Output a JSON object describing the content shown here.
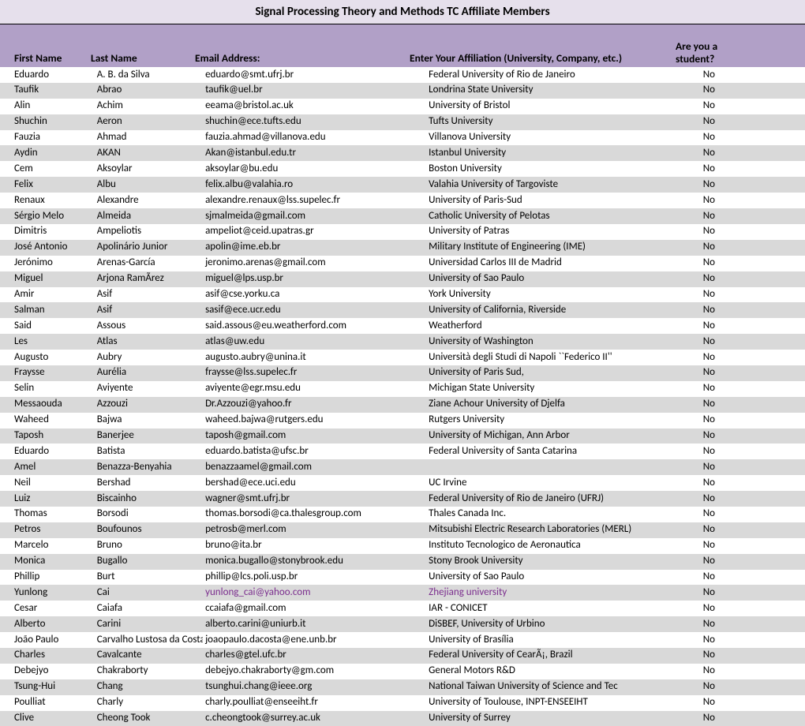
{
  "title": "Signal Processing Theory and Methods TC Affiliate Members",
  "colors": {
    "title_bg": "#e6e0ec",
    "header_bg": "#b1a0c7",
    "row_alt": "#d9d9d9",
    "highlight_text": "#7b2e8e"
  },
  "columns": [
    "First Name",
    "Last Name",
    "Email Address:",
    "Enter Your Affiliation (University, Company, etc.)",
    "Are you a student?"
  ],
  "rows": [
    {
      "first": "Eduardo",
      "last": "A. B. da Silva",
      "email": "eduardo@smt.ufrj.br",
      "affil": "Federal University of Rio de Janeiro",
      "student": "No"
    },
    {
      "first": "Taufik",
      "last": "Abrao",
      "email": "taufik@uel.br",
      "affil": "Londrina State University",
      "student": "No"
    },
    {
      "first": "Alin",
      "last": "Achim",
      "email": "eeama@bristol.ac.uk",
      "affil": "University of Bristol",
      "student": "No"
    },
    {
      "first": "Shuchin",
      "last": "Aeron",
      "email": "shuchin@ece.tufts.edu",
      "affil": "Tufts University",
      "student": "No"
    },
    {
      "first": "Fauzia",
      "last": "Ahmad",
      "email": "fauzia.ahmad@villanova.edu",
      "affil": "Villanova University",
      "student": "No"
    },
    {
      "first": "Aydin",
      "last": "AKAN",
      "email": "Akan@istanbul.edu.tr",
      "affil": "Istanbul University",
      "student": "No"
    },
    {
      "first": "Cem",
      "last": "Aksoylar",
      "email": "aksoylar@bu.edu",
      "affil": "Boston University",
      "student": "No"
    },
    {
      "first": "Felix",
      "last": "Albu",
      "email": "felix.albu@valahia.ro",
      "affil": "Valahia University of Targoviste",
      "student": "No"
    },
    {
      "first": "Renaux",
      "last": "Alexandre",
      "email": "alexandre.renaux@lss.supelec.fr",
      "affil": "University of Paris-Sud",
      "student": "No"
    },
    {
      "first": "Sérgio Melo",
      "last": "Almeida",
      "email": "sjmalmeida@gmail.com",
      "affil": "Catholic University of Pelotas",
      "student": "No"
    },
    {
      "first": "Dimitris",
      "last": "Ampeliotis",
      "email": "ampeliot@ceid.upatras.gr",
      "affil": "University of Patras",
      "student": "No"
    },
    {
      "first": "José Antonio",
      "last": "Apolinário Junior",
      "email": "apolin@ime.eb.br",
      "affil": "Military Institute of Engineering (IME)",
      "student": "No"
    },
    {
      "first": "Jerónimo",
      "last": "Arenas-García",
      "email": "jeronimo.arenas@gmail.com",
      "affil": "Universidad Carlos III de Madrid",
      "student": "No"
    },
    {
      "first": "Miguel",
      "last": "Arjona RamÃ­rez",
      "email": "miguel@lps.usp.br",
      "affil": "University of Sao Paulo",
      "student": "No"
    },
    {
      "first": "Amir",
      "last": "Asif",
      "email": "asif@cse.yorku.ca",
      "affil": "York University",
      "student": "No"
    },
    {
      "first": "Salman",
      "last": "Asif",
      "email": "sasif@ece.ucr.edu",
      "affil": "University of California, Riverside",
      "student": "No"
    },
    {
      "first": "Said",
      "last": "Assous",
      "email": "said.assous@eu.weatherford.com",
      "affil": "Weatherford",
      "student": "No"
    },
    {
      "first": "Les",
      "last": "Atlas",
      "email": "atlas@uw.edu",
      "affil": "University of Washington",
      "student": "No"
    },
    {
      "first": "Augusto",
      "last": "Aubry",
      "email": "augusto.aubry@unina.it",
      "affil": " Università degli Studi di Napoli ``Federico II''",
      "student": "No"
    },
    {
      "first": "Fraysse",
      "last": "Aurélia",
      "email": "fraysse@lss.supelec.fr",
      "affil": "University of Paris Sud,",
      "student": "No"
    },
    {
      "first": "Selin",
      "last": "Aviyente",
      "email": "aviyente@egr.msu.edu",
      "affil": "Michigan State University",
      "student": "No"
    },
    {
      "first": "Messaouda",
      "last": "Azzouzi",
      "email": "Dr.Azzouzi@yahoo.fr",
      "affil": "Ziane Achour University of Djelfa",
      "student": "No"
    },
    {
      "first": "Waheed",
      "last": "Bajwa",
      "email": "waheed.bajwa@rutgers.edu",
      "affil": "Rutgers University",
      "student": "No"
    },
    {
      "first": "Taposh",
      "last": "Banerjee",
      "email": "taposh@gmail.com",
      "affil": "University of Michigan, Ann Arbor",
      "student": "No"
    },
    {
      "first": "Eduardo",
      "last": "Batista",
      "email": "eduardo.batista@ufsc.br",
      "affil": "Federal University of Santa Catarina",
      "student": "No"
    },
    {
      "first": "Amel",
      "last": "Benazza-Benyahia",
      "email": "benazzaamel@gmail.com",
      "affil": "",
      "student": "No"
    },
    {
      "first": "Neil",
      "last": "Bershad",
      "email": "bershad@ece.uci.edu",
      "affil": "UC Irvine",
      "student": "No"
    },
    {
      "first": "Luiz",
      "last": "Biscainho",
      "email": "wagner@smt.ufrj.br",
      "affil": "Federal University of Rio de Janeiro (UFRJ)",
      "student": "No"
    },
    {
      "first": "Thomas",
      "last": "Borsodi",
      "email": "thomas.borsodi@ca.thalesgroup.com",
      "affil": "Thales Canada Inc.",
      "student": "No"
    },
    {
      "first": "Petros",
      "last": "Boufounos",
      "email": "petrosb@merl.com",
      "affil": "Mitsubishi Electric Research Laboratories (MERL)",
      "student": "No"
    },
    {
      "first": "Marcelo",
      "last": "Bruno",
      "email": "bruno@ita.br",
      "affil": "Instituto Tecnologico de Aeronautica",
      "student": "No"
    },
    {
      "first": "Monica",
      "last": "Bugallo",
      "email": "monica.bugallo@stonybrook.edu",
      "affil": "Stony Brook University",
      "student": "No"
    },
    {
      "first": "Phillip",
      "last": "Burt",
      "email": "phillip@lcs.poli.usp.br",
      "affil": "University of Sao Paulo",
      "student": "No"
    },
    {
      "first": "Yunlong",
      "last": "Cai",
      "email": "yunlong_cai@yahoo.com",
      "affil": "Zhejiang university",
      "student": "No",
      "highlight": true
    },
    {
      "first": "Cesar",
      "last": "Caiafa",
      "email": "ccaiafa@gmail.com",
      "affil": "IAR - CONICET",
      "student": "No"
    },
    {
      "first": "Alberto",
      "last": "Carini",
      "email": "alberto.carini@uniurb.it",
      "affil": "DiSBEF, University of Urbino",
      "student": "No"
    },
    {
      "first": "João Paulo",
      "last": "Carvalho Lustosa da Costa",
      "email": "joaopaulo.dacosta@ene.unb.br",
      "affil": "University of Brasília",
      "student": "No"
    },
    {
      "first": "Charles",
      "last": "Cavalcante",
      "email": "charles@gtel.ufc.br",
      "affil": "Federal University of CearÃ¡, Brazil",
      "student": "No"
    },
    {
      "first": "Debejyo",
      "last": "Chakraborty",
      "email": "debejyo.chakraborty@gm.com",
      "affil": "General Motors R&D",
      "student": "No"
    },
    {
      "first": "Tsung-Hui",
      "last": "Chang",
      "email": "tsunghui.chang@ieee.org",
      "affil": "National Taiwan University of Science and Tec",
      "student": "No"
    },
    {
      "first": "Poulliat",
      "last": "Charly",
      "email": "charly.poulliat@enseeiht.fr",
      "affil": "University of Toulouse, INPT-ENSEEIHT",
      "student": "No"
    },
    {
      "first": "Clive",
      "last": "Cheong Took",
      "email": "c.cheongtook@surrey.ac.uk",
      "affil": "University of Surrey",
      "student": "No"
    }
  ]
}
